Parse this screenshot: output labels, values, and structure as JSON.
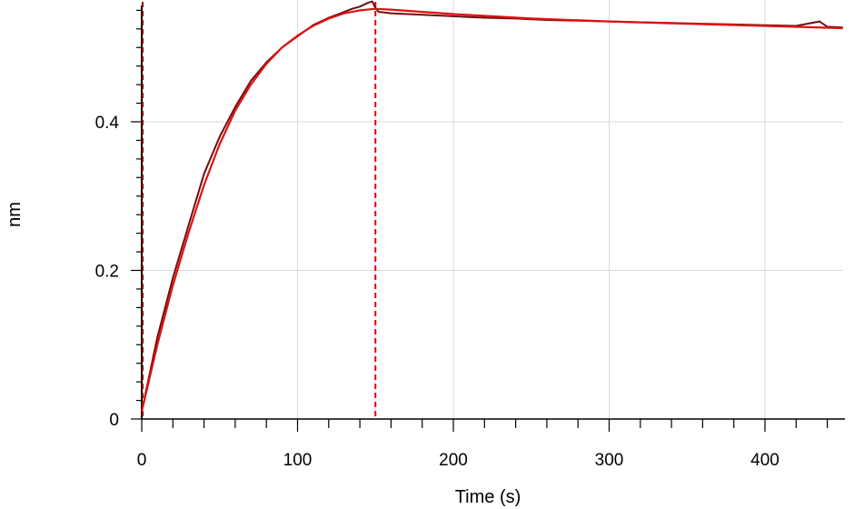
{
  "chart_data": {
    "type": "line",
    "title": "",
    "xlabel": "Time (s)",
    "ylabel": "nm",
    "xlim": [
      0,
      450
    ],
    "ylim": [
      0,
      0.56
    ],
    "x_ticks": [
      0,
      100,
      200,
      300,
      400
    ],
    "y_ticks": [
      0,
      0.2,
      0.4
    ],
    "x_tick_labels": [
      "0",
      "100",
      "200",
      "300",
      "400"
    ],
    "y_tick_labels": [
      "0",
      "0.2",
      "0.4"
    ],
    "grid": true,
    "legend": "none",
    "vertical_markers": [
      {
        "x": 0,
        "style": "dashed",
        "color": "#8b0000"
      },
      {
        "x": 150,
        "style": "dashed",
        "color": "#e00000"
      }
    ],
    "series": [
      {
        "role": "measured",
        "color": "#6b0f0f",
        "x": [
          0,
          5,
          10,
          20,
          30,
          40,
          50,
          60,
          70,
          80,
          90,
          100,
          110,
          120,
          130,
          135,
          140,
          145,
          148,
          150,
          152,
          160,
          180,
          200,
          220,
          240,
          260,
          280,
          300,
          320,
          340,
          360,
          380,
          400,
          420,
          435,
          440,
          450
        ],
        "y": [
          0.01,
          0.06,
          0.11,
          0.19,
          0.26,
          0.33,
          0.38,
          0.42,
          0.455,
          0.48,
          0.5,
          0.515,
          0.53,
          0.54,
          0.548,
          0.552,
          0.555,
          0.56,
          0.562,
          0.553,
          0.548,
          0.546,
          0.544,
          0.542,
          0.54,
          0.539,
          0.537,
          0.536,
          0.535,
          0.534,
          0.533,
          0.532,
          0.531,
          0.53,
          0.529,
          0.535,
          0.528,
          0.527
        ]
      },
      {
        "role": "fit",
        "color": "#e01010",
        "x": [
          0,
          5,
          10,
          20,
          30,
          40,
          50,
          60,
          70,
          80,
          90,
          100,
          110,
          120,
          130,
          140,
          150,
          160,
          200,
          250,
          300,
          350,
          400,
          450
        ],
        "y": [
          0.01,
          0.055,
          0.1,
          0.18,
          0.25,
          0.315,
          0.37,
          0.415,
          0.45,
          0.478,
          0.5,
          0.516,
          0.529,
          0.539,
          0.546,
          0.55,
          0.552,
          0.551,
          0.545,
          0.539,
          0.535,
          0.532,
          0.529,
          0.526
        ]
      }
    ]
  }
}
